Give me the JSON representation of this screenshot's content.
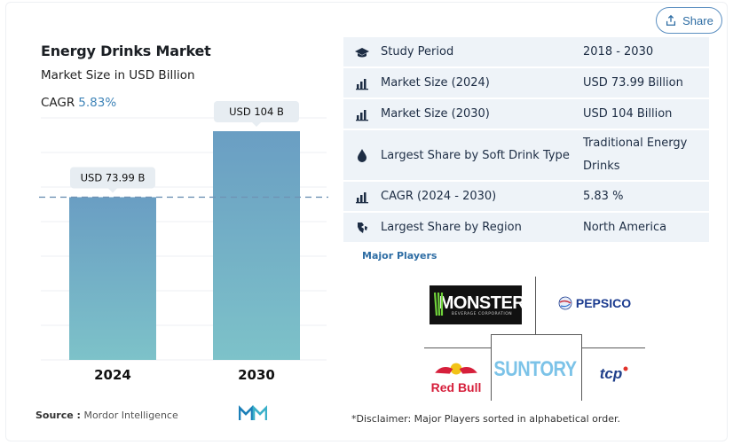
{
  "share": {
    "label": "Share",
    "icon": "share-icon"
  },
  "chart_data": {
    "type": "bar",
    "title": "Energy Drinks Market",
    "subtitle": "Market Size in USD Billion",
    "cagr_label": "CAGR",
    "cagr_value": "5.83%",
    "categories": [
      "2024",
      "2030"
    ],
    "values": [
      73.99,
      104
    ],
    "data_labels": [
      "USD 73.99 B",
      "USD 104 B"
    ],
    "ylim": [
      0,
      104
    ],
    "grid": true,
    "reference_line_value": 73.99,
    "bar_color": "#6a9ec3",
    "bar_color_bottom": "#7dc2c9"
  },
  "source": {
    "label": "Source :",
    "value": "Mordor Intelligence"
  },
  "info_rows": [
    {
      "icon": "graduation-cap-icon",
      "label": "Study Period",
      "value": "2018 - 2030"
    },
    {
      "icon": "bar-chart-icon",
      "label": "Market Size (2024)",
      "value": "USD 73.99 Billion"
    },
    {
      "icon": "bar-chart-icon",
      "label": "Market Size (2030)",
      "value": "USD 104 Billion"
    },
    {
      "icon": "drop-icon",
      "label": "Largest Share by Soft Drink Type",
      "value": "Traditional Energy Drinks"
    },
    {
      "icon": "bar-chart-icon",
      "label": "CAGR (2024 - 2030)",
      "value": "5.83 %"
    },
    {
      "icon": "globe-region-icon",
      "label": "Largest Share by Region",
      "value": "North America"
    }
  ],
  "major_players": {
    "title": "Major Players",
    "monster_name": "MONSTER",
    "monster_sub": "BEVERAGE CORPORATION",
    "pepsico_name": "PEPSICO",
    "redbull_name": "Red Bull",
    "suntory_name": "SUNTORY",
    "tcp_name": "tcp"
  },
  "disclaimer": "*Disclaimer: Major Players sorted in alphabetical order."
}
